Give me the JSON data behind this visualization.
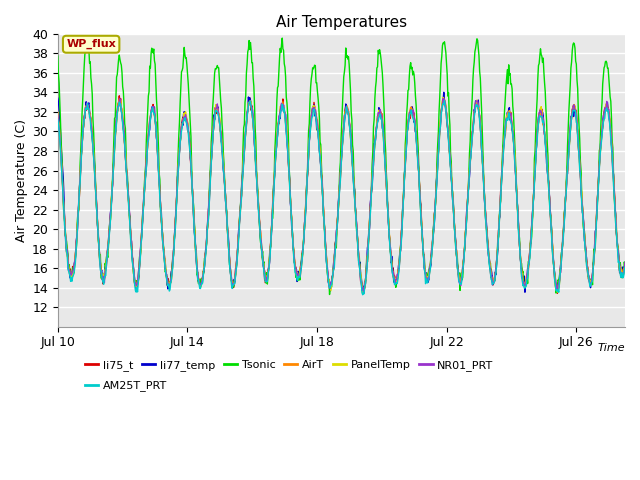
{
  "title": "Air Temperatures",
  "xlabel": "Time",
  "ylabel": "Air Temperature (C)",
  "ylim": [
    10,
    40
  ],
  "yticks": [
    12,
    14,
    16,
    18,
    20,
    22,
    24,
    26,
    28,
    30,
    32,
    34,
    36,
    38,
    40
  ],
  "xstart_day": 10,
  "xend_day": 27.5,
  "xtick_days": [
    10,
    14,
    18,
    22,
    26
  ],
  "xtick_labels": [
    "Jul 10",
    "Jul 14",
    "Jul 18",
    "Jul 22",
    "Jul 26"
  ],
  "series": [
    {
      "name": "li75_t",
      "color": "#dd0000"
    },
    {
      "name": "li77_temp",
      "color": "#0000cc"
    },
    {
      "name": "Tsonic",
      "color": "#00dd00"
    },
    {
      "name": "AirT",
      "color": "#ff8800"
    },
    {
      "name": "PanelTemp",
      "color": "#dddd00"
    },
    {
      "name": "NR01_PRT",
      "color": "#9933cc"
    },
    {
      "name": "AM25T_PRT",
      "color": "#00cccc"
    }
  ],
  "annotation_text": "WP_flux",
  "annotation_color": "#aa0000",
  "annotation_bg": "#ffffcc",
  "annotation_border": "#aaaa00",
  "fig_bg": "#ffffff",
  "plot_bg": "#e8e8e8",
  "grid_color": "#ffffff",
  "figsize": [
    6.4,
    4.8
  ],
  "dpi": 100
}
